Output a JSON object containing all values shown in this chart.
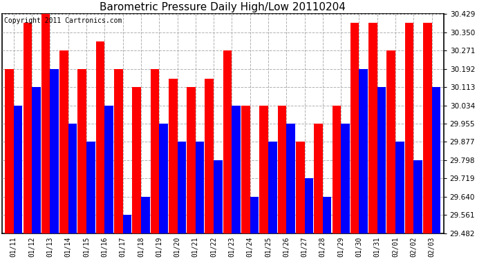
{
  "title": "Barometric Pressure Daily High/Low 20110204",
  "copyright": "Copyright 2011 Cartronics.com",
  "dates": [
    "01/11",
    "01/12",
    "01/13",
    "01/14",
    "01/15",
    "01/16",
    "01/17",
    "01/18",
    "01/19",
    "01/20",
    "01/21",
    "01/22",
    "01/23",
    "01/24",
    "01/25",
    "01/26",
    "01/27",
    "01/28",
    "01/29",
    "01/30",
    "01/31",
    "02/01",
    "02/02",
    "02/03"
  ],
  "highs": [
    30.192,
    30.39,
    30.429,
    30.271,
    30.192,
    30.31,
    30.192,
    30.113,
    30.192,
    30.15,
    30.113,
    30.15,
    30.271,
    30.034,
    30.034,
    30.034,
    29.877,
    29.955,
    30.034,
    30.39,
    30.39,
    30.271,
    30.39,
    30.39
  ],
  "lows": [
    30.034,
    30.113,
    30.192,
    29.955,
    29.877,
    30.034,
    29.561,
    29.64,
    29.955,
    29.877,
    29.877,
    29.798,
    30.034,
    29.64,
    29.877,
    29.955,
    29.719,
    29.64,
    29.955,
    30.192,
    30.113,
    29.877,
    29.798,
    30.113
  ],
  "ymin": 29.482,
  "ymax": 30.429,
  "yticks": [
    29.482,
    29.561,
    29.64,
    29.719,
    29.798,
    29.877,
    29.955,
    30.034,
    30.113,
    30.192,
    30.271,
    30.35,
    30.429
  ],
  "bar_color_high": "#ff0000",
  "bar_color_low": "#0000ff",
  "background_color": "#ffffff",
  "grid_color": "#b0b0b0",
  "title_fontsize": 11,
  "copyright_fontsize": 7
}
